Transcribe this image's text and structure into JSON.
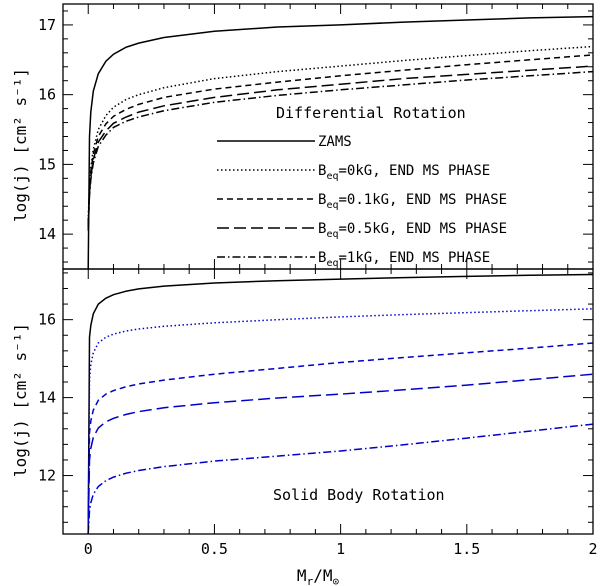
{
  "chart_data": [
    {
      "type": "line",
      "panel": "top",
      "title": "Differential Rotation",
      "xlabel": "",
      "ylabel": "log(j) [cm² s⁻¹]",
      "xlim": [
        -0.1,
        2.0
      ],
      "ylim": [
        13.5,
        17.3
      ],
      "yticks": [
        14,
        15,
        16,
        17
      ],
      "ytick_labels": [
        "14",
        "15",
        "16",
        "17"
      ],
      "x": [
        0.0,
        0.005,
        0.01,
        0.02,
        0.04,
        0.07,
        0.1,
        0.15,
        0.2,
        0.3,
        0.5,
        0.75,
        1.0,
        1.25,
        1.5,
        1.75,
        2.0
      ],
      "series": [
        {
          "name": "ZAMS",
          "label": "ZAMS",
          "sub": "",
          "label_rest": "",
          "dash": "",
          "color": "#000000",
          "values": [
            13.5,
            15.4,
            15.75,
            16.05,
            16.3,
            16.48,
            16.58,
            16.68,
            16.74,
            16.82,
            16.91,
            16.97,
            17.0,
            17.04,
            17.07,
            17.1,
            17.12
          ]
        },
        {
          "name": "Beq=0kG, END MS PHASE",
          "label": "B",
          "sub": "eq",
          "label_rest": "=0kG, END MS PHASE",
          "dash": "1.5,2.5",
          "color": "#000000",
          "values": [
            14.2,
            14.7,
            14.95,
            15.22,
            15.5,
            15.7,
            15.82,
            15.93,
            16.0,
            16.1,
            16.23,
            16.33,
            16.41,
            16.49,
            16.56,
            16.63,
            16.69
          ]
        },
        {
          "name": "Beq=0.1kG, END MS PHASE",
          "label": "B",
          "sub": "eq",
          "label_rest": "=0.1kG, END MS PHASE",
          "dash": "6,4",
          "color": "#000000",
          "values": [
            14.15,
            14.65,
            14.9,
            15.15,
            15.4,
            15.58,
            15.69,
            15.79,
            15.86,
            15.96,
            16.08,
            16.18,
            16.27,
            16.35,
            16.43,
            16.5,
            16.57
          ]
        },
        {
          "name": "Beq=0.5kG, END MS PHASE",
          "label": "B",
          "sub": "eq",
          "label_rest": "=0.5kG, END MS PHASE",
          "dash": "12,5",
          "color": "#000000",
          "values": [
            14.1,
            14.6,
            14.82,
            15.07,
            15.32,
            15.48,
            15.59,
            15.68,
            15.75,
            15.84,
            15.96,
            16.07,
            16.15,
            16.23,
            16.29,
            16.35,
            16.41
          ]
        },
        {
          "name": "Beq=1kG, END MS PHASE",
          "label": "B",
          "sub": "eq",
          "label_rest": "=1kG, END MS PHASE",
          "dash": "8,3,1.5,3",
          "color": "#000000",
          "values": [
            14.05,
            14.55,
            14.78,
            15.02,
            15.26,
            15.42,
            15.53,
            15.62,
            15.68,
            15.77,
            15.89,
            15.99,
            16.07,
            16.14,
            16.21,
            16.27,
            16.33
          ]
        }
      ]
    },
    {
      "type": "line",
      "panel": "bottom",
      "title": "Solid Body Rotation",
      "xlabel": "M_r/M_⊙",
      "xlabel_parts": {
        "main": "M",
        "sub": "r",
        "slash": "/M",
        "sub2": "⊙"
      },
      "ylabel": "log(j) [cm² s⁻¹]",
      "xlim": [
        -0.1,
        2.0
      ],
      "ylim": [
        10.5,
        17.3
      ],
      "xticks": [
        0,
        0.5,
        1,
        1.5,
        2
      ],
      "xtick_labels": [
        "0",
        "0.5",
        "1",
        "1.5",
        "2"
      ],
      "yticks": [
        12,
        14,
        16
      ],
      "ytick_labels": [
        "12",
        "14",
        "16"
      ],
      "x": [
        0.0,
        0.005,
        0.01,
        0.02,
        0.04,
        0.07,
        0.1,
        0.15,
        0.2,
        0.3,
        0.5,
        0.75,
        1.0,
        1.25,
        1.5,
        1.75,
        2.0
      ],
      "series": [
        {
          "name": "ZAMS",
          "dash": "",
          "color": "#000000",
          "values": [
            10.5,
            15.55,
            15.85,
            16.15,
            16.4,
            16.55,
            16.64,
            16.73,
            16.79,
            16.86,
            16.94,
            17.0,
            17.04,
            17.08,
            17.11,
            17.14,
            17.16
          ]
        },
        {
          "name": "Beq=0kG, END MS PHASE",
          "dash": "1.5,2.5",
          "color": "#0000cc",
          "values": [
            10.5,
            14.45,
            14.85,
            15.15,
            15.4,
            15.55,
            15.63,
            15.71,
            15.76,
            15.83,
            15.92,
            16.0,
            16.07,
            16.13,
            16.18,
            16.23,
            16.28
          ]
        },
        {
          "name": "Beq=0.1kG, END MS PHASE",
          "dash": "6,4",
          "color": "#0000cc",
          "values": [
            10.5,
            13.1,
            13.4,
            13.68,
            13.93,
            14.09,
            14.18,
            14.28,
            14.35,
            14.45,
            14.6,
            14.75,
            14.9,
            15.03,
            15.15,
            15.27,
            15.4
          ]
        },
        {
          "name": "Beq=0.5kG, END MS PHASE",
          "dash": "12,5",
          "color": "#0000cc",
          "values": [
            10.5,
            12.4,
            12.7,
            12.98,
            13.22,
            13.38,
            13.47,
            13.57,
            13.64,
            13.74,
            13.87,
            13.99,
            14.09,
            14.2,
            14.32,
            14.46,
            14.6
          ]
        },
        {
          "name": "Beq=1kG, END MS PHASE",
          "dash": "8,3,1.5,3",
          "color": "#0000cc",
          "values": [
            10.5,
            11.1,
            11.3,
            11.52,
            11.72,
            11.87,
            11.96,
            12.06,
            12.13,
            12.23,
            12.37,
            12.5,
            12.63,
            12.79,
            12.96,
            13.14,
            13.32
          ]
        }
      ]
    }
  ]
}
